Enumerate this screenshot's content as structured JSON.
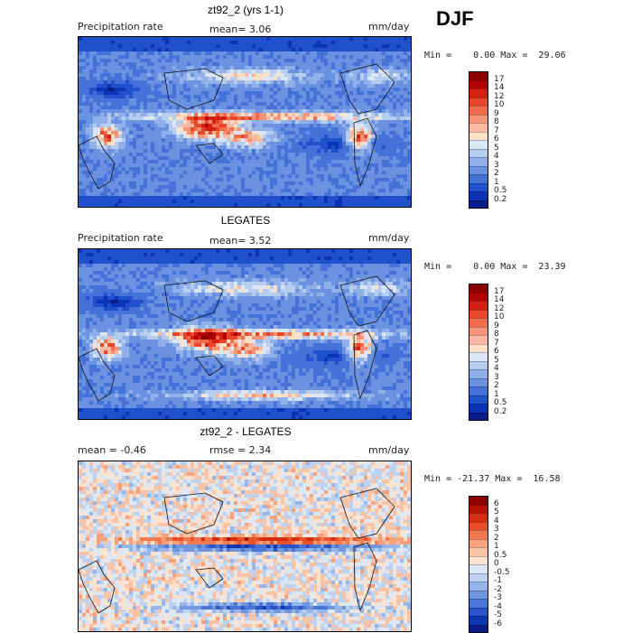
{
  "season": "DJF",
  "panels": [
    {
      "title": "zt92_2 (yrs 1-1)",
      "left_label": "Precipitation rate",
      "mid_label": "mean=   3.06",
      "right_label": "mm/day",
      "minmax": "Min =    0.00 Max =  29.06",
      "field_type": "precip",
      "colorbar_levels": [
        "17",
        "14",
        "12",
        "10",
        "9",
        "8",
        "7",
        "6",
        "5",
        "4",
        "3",
        "2",
        "1",
        "0.5",
        "0.2"
      ],
      "colorbar_colors": [
        "#8b0000",
        "#b30000",
        "#d42010",
        "#e8452a",
        "#f26b4a",
        "#f79477",
        "#fab9a0",
        "#fde0c5",
        "#dbe6f5",
        "#b7cdef",
        "#8fb0e8",
        "#6b92e0",
        "#4472d8",
        "#2051cc",
        "#0a33b5",
        "#081d8a"
      ]
    },
    {
      "title": "LEGATES",
      "left_label": "Precipitation rate",
      "mid_label": "mean=   3.52",
      "right_label": "mm/day",
      "minmax": "Min =    0.00 Max =  23.39",
      "field_type": "precip",
      "colorbar_levels": [
        "17",
        "14",
        "12",
        "10",
        "9",
        "8",
        "7",
        "6",
        "5",
        "4",
        "3",
        "2",
        "1",
        "0.5",
        "0.2"
      ],
      "colorbar_colors": [
        "#8b0000",
        "#b30000",
        "#d42010",
        "#e8452a",
        "#f26b4a",
        "#f79477",
        "#fab9a0",
        "#fde0c5",
        "#dbe6f5",
        "#b7cdef",
        "#8fb0e8",
        "#6b92e0",
        "#4472d8",
        "#2051cc",
        "#0a33b5",
        "#081d8a"
      ]
    },
    {
      "title": "zt92_2 - LEGATES",
      "left_label": "mean =   -0.46",
      "mid_label": "rmse =    2.34",
      "right_label": "mm/day",
      "minmax": "Min = -21.37 Max =  16.58",
      "field_type": "diff",
      "colorbar_levels": [
        "6",
        "5",
        "4",
        "3",
        "2",
        "1",
        "0.5",
        "0",
        "-0.5",
        "-1",
        "-2",
        "-3",
        "-4",
        "-5",
        "-6"
      ],
      "colorbar_colors": [
        "#8b0000",
        "#b31200",
        "#d42d10",
        "#e8502a",
        "#f2784f",
        "#f7a07a",
        "#fac3a5",
        "#fde3cf",
        "#dde8f6",
        "#bdd2f0",
        "#96b5e8",
        "#6f95df",
        "#4a74d6",
        "#2853c9",
        "#0f36b3",
        "#081d8a"
      ]
    }
  ],
  "chart_data": [
    {
      "type": "heatmap",
      "title": "zt92_2 (yrs 1-1)",
      "field": "Precipitation rate",
      "units": "mm/day",
      "mean": 3.06,
      "min": 0.0,
      "max": 29.06,
      "levels": [
        0.2,
        0.5,
        1,
        2,
        3,
        4,
        5,
        6,
        7,
        8,
        9,
        10,
        12,
        14,
        17
      ]
    },
    {
      "type": "heatmap",
      "title": "LEGATES",
      "field": "Precipitation rate",
      "units": "mm/day",
      "mean": 3.52,
      "min": 0.0,
      "max": 23.39,
      "levels": [
        0.2,
        0.5,
        1,
        2,
        3,
        4,
        5,
        6,
        7,
        8,
        9,
        10,
        12,
        14,
        17
      ]
    },
    {
      "type": "heatmap",
      "title": "zt92_2 - LEGATES",
      "units": "mm/day",
      "mean": -0.46,
      "rmse": 2.34,
      "min": -21.37,
      "max": 16.58,
      "levels": [
        -6,
        -5,
        -4,
        -3,
        -2,
        -1,
        -0.5,
        0,
        0.5,
        1,
        2,
        3,
        4,
        5,
        6
      ]
    }
  ]
}
